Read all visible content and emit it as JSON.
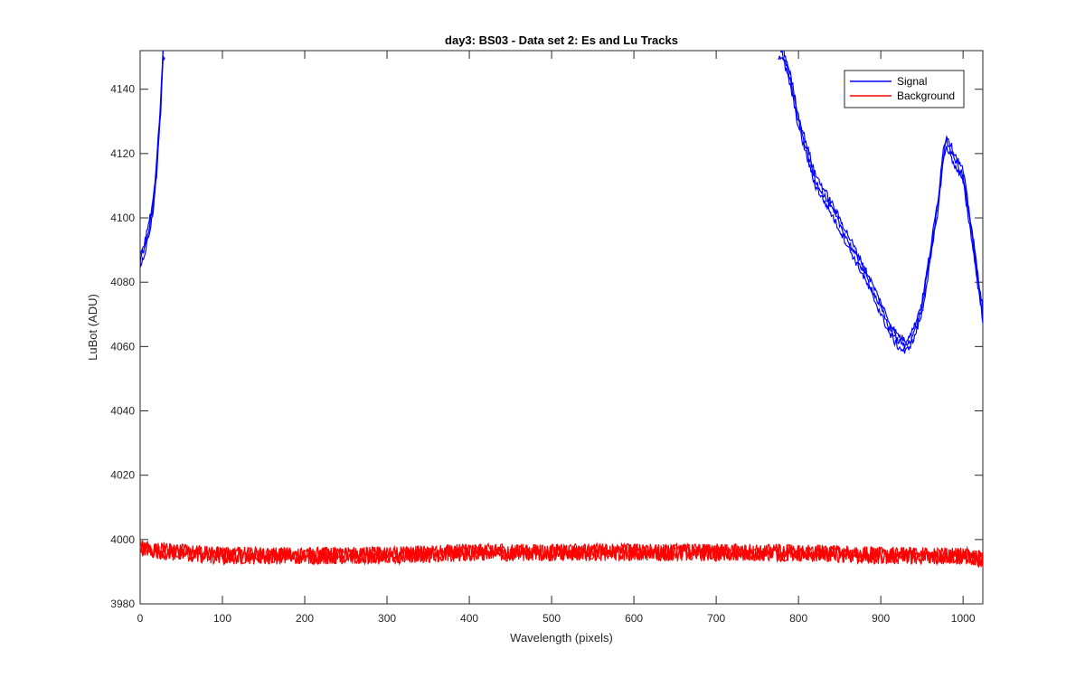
{
  "chart_data": {
    "type": "line",
    "title": "day3: BS03 - Data set 2: Es and Lu Tracks",
    "xlabel": "Wavelength (pixels)",
    "ylabel": "LuBot (ADU)",
    "xlim": [
      0,
      1024
    ],
    "ylim": [
      3980,
      4152
    ],
    "x_ticks": [
      0,
      100,
      200,
      300,
      400,
      500,
      600,
      700,
      800,
      900,
      1000
    ],
    "y_ticks": [
      3980,
      4000,
      4020,
      4040,
      4060,
      4080,
      4100,
      4120,
      4140
    ],
    "grid": false,
    "legend_position": "top-right",
    "legend": [
      {
        "label": "Signal",
        "color": "#0000ff"
      },
      {
        "label": "Background",
        "color": "#ff0000"
      }
    ],
    "series": [
      {
        "name": "Signal",
        "color": "#0000ff",
        "note_tracks": 3,
        "x": [
          0,
          5,
          10,
          15,
          20,
          25,
          28,
          780,
          790,
          800,
          820,
          840,
          860,
          880,
          900,
          910,
          920,
          930,
          940,
          950,
          960,
          970,
          975,
          980,
          985,
          990,
          1000,
          1010,
          1020,
          1024
        ],
        "values": [
          4087,
          4090,
          4096,
          4102,
          4115,
          4135,
          4152,
          4152,
          4143,
          4130,
          4112,
          4103,
          4093,
          4083,
          4072,
          4066,
          4062,
          4060,
          4064,
          4072,
          4088,
          4105,
          4118,
          4124,
          4121,
          4118,
          4113,
          4096,
          4077,
          4070
        ]
      },
      {
        "name": "Background",
        "color": "#ff0000",
        "note_tracks": 3,
        "x": [
          0,
          100,
          200,
          300,
          400,
          500,
          600,
          700,
          800,
          900,
          1000,
          1024
        ],
        "values": [
          3997,
          3995,
          3995,
          3995,
          3996,
          3996,
          3996,
          3996,
          3996,
          3995,
          3995,
          3994
        ]
      }
    ]
  }
}
